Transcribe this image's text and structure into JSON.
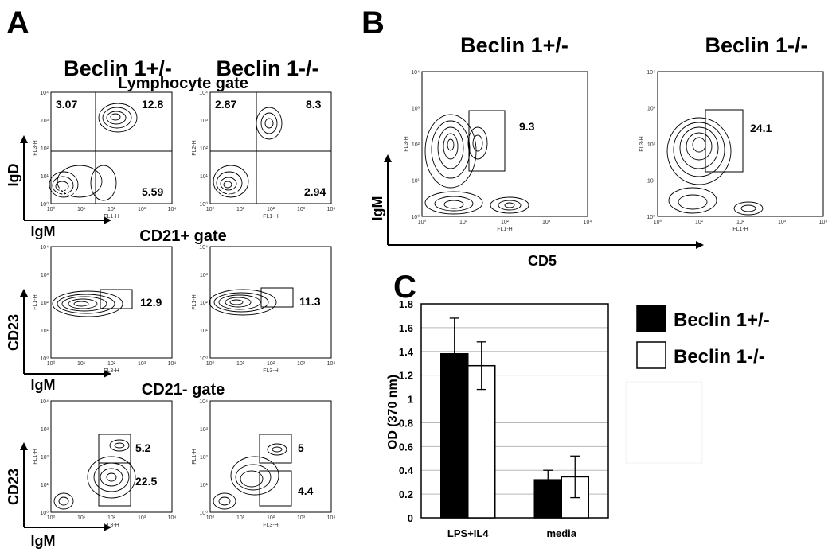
{
  "panels": {
    "A": {
      "letter": "A",
      "col_titles": [
        "Beclin 1+/-",
        "Beclin 1-/-"
      ],
      "gates": [
        {
          "title": "Lymphocyte gate",
          "y_label": "IgD",
          "x_label": "IgM",
          "plots": [
            {
              "x_tick": "FL1-H",
              "y_tick": "FL3-H",
              "values": [
                "3.07",
                "12.8",
                "78.1",
                "5.59"
              ]
            },
            {
              "x_tick": "FL1-H",
              "y_tick": "FL2-H",
              "values": [
                "2.87",
                "8.3",
                "85.9",
                "2.94"
              ]
            }
          ]
        },
        {
          "title": "CD21+ gate",
          "y_label": "CD23",
          "x_label": "IgM",
          "plots": [
            {
              "x_tick": "FL3-H",
              "y_tick": "FL1-H",
              "values": [
                "12.9"
              ]
            },
            {
              "x_tick": "FL3-H",
              "y_tick": "FL1-H",
              "values": [
                "11.3"
              ]
            }
          ]
        },
        {
          "title": "CD21- gate",
          "y_label": "CD23",
          "x_label": "IgM",
          "plots": [
            {
              "x_tick": "FL3-H",
              "y_tick": "FL1-H",
              "values": [
                "5.2",
                "22.5"
              ]
            },
            {
              "x_tick": "FL3-H",
              "y_tick": "FL1-H",
              "values": [
                "5",
                "4.4"
              ]
            }
          ]
        }
      ]
    },
    "B": {
      "letter": "B",
      "col_titles": [
        "Beclin 1+/-",
        "Beclin 1-/-"
      ],
      "y_label": "IgM",
      "x_label": "CD5",
      "plots": [
        {
          "x_tick": "FL1-H",
          "y_tick": "FL3-H",
          "value": "9.3"
        },
        {
          "x_tick": "FL1-H",
          "y_tick": "FL3-H",
          "value": "24.1"
        }
      ]
    },
    "C": {
      "letter": "C"
    }
  },
  "log_ticks": [
    "10⁰",
    "10¹",
    "10²",
    "10³",
    "10⁴"
  ],
  "chart_data": {
    "type": "bar",
    "categories": [
      "LPS+IL4",
      "media"
    ],
    "ylabel": "OD (370 nm)",
    "ylim": [
      0,
      1.8
    ],
    "yticks": [
      "0",
      "0.2",
      "0.4",
      "0.6",
      "0.8",
      "1",
      "1.2",
      "1.4",
      "1.6",
      "1.8"
    ],
    "grid": true,
    "legend_position": "right",
    "series": [
      {
        "name": "Beclin 1+/-",
        "values": [
          1.38,
          0.32
        ],
        "errors": [
          0.3,
          0.08
        ],
        "color": "#000000"
      },
      {
        "name": "Beclin 1-/-",
        "values": [
          1.28,
          0.345
        ],
        "errors": [
          0.2,
          0.175
        ],
        "color": "#ffffff"
      }
    ]
  }
}
